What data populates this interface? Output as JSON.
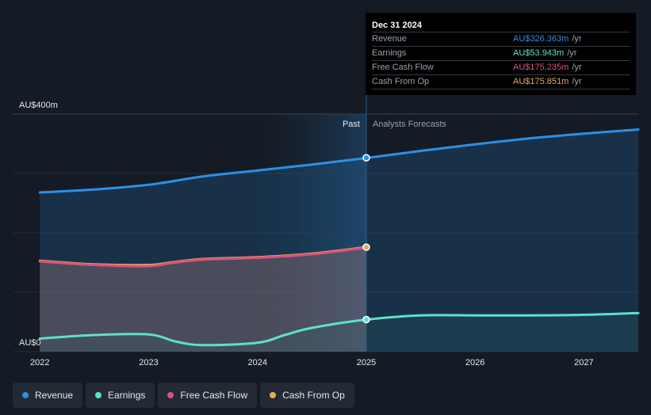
{
  "tooltip": {
    "date": "Dec 31 2024",
    "rows": [
      {
        "label": "Revenue",
        "value": "AU$326.363m",
        "unit": "/yr",
        "color": "#2d8fe6"
      },
      {
        "label": "Earnings",
        "value": "AU$53.943m",
        "unit": "/yr",
        "color": "#5ee0c9"
      },
      {
        "label": "Free Cash Flow",
        "value": "AU$175.235m",
        "unit": "/yr",
        "color": "#d9527f"
      },
      {
        "label": "Cash From Op",
        "value": "AU$175.851m",
        "unit": "/yr",
        "color": "#e8a95c"
      }
    ]
  },
  "legend": [
    {
      "label": "Revenue",
      "color": "#2d8fe6"
    },
    {
      "label": "Earnings",
      "color": "#5ee0c9"
    },
    {
      "label": "Free Cash Flow",
      "color": "#d9527f"
    },
    {
      "label": "Cash From Op",
      "color": "#e8a95c"
    }
  ],
  "chart_data": {
    "type": "area",
    "ylabel_top": "AU$400m",
    "ylabel_bottom": "AU$0",
    "ylim": [
      0,
      400
    ],
    "xlim": [
      2021.75,
      2027.5
    ],
    "x_ticks": [
      "2022",
      "2023",
      "2024",
      "2025",
      "2026",
      "2027"
    ],
    "x_tick_values": [
      2022,
      2023,
      2024,
      2025,
      2026,
      2027
    ],
    "past_label": "Past",
    "forecast_label": "Analysts Forecasts",
    "divider_x": 2025.0,
    "shade_start_x": 2024.0,
    "series": [
      {
        "name": "Revenue",
        "color": "#2d8fe6",
        "fill": true,
        "x": [
          2022.0,
          2022.5,
          2023.0,
          2023.5,
          2024.0,
          2024.5,
          2025.0,
          2025.5,
          2026.0,
          2026.5,
          2027.0,
          2027.5
        ],
        "values": [
          268,
          273,
          281,
          295,
          305,
          315,
          326,
          338,
          349,
          359,
          367,
          374
        ]
      },
      {
        "name": "Cash From Op",
        "color": "#e8a95c",
        "fill": true,
        "x": [
          2022.0,
          2022.5,
          2023.0,
          2023.2,
          2023.5,
          2024.0,
          2024.5,
          2025.0
        ],
        "values": [
          153,
          147,
          146,
          150,
          156,
          159,
          165,
          176
        ]
      },
      {
        "name": "Free Cash Flow",
        "color": "#d9527f",
        "fill": false,
        "x": [
          2022.0,
          2022.5,
          2023.0,
          2023.2,
          2023.5,
          2024.0,
          2024.5,
          2025.0
        ],
        "values": [
          152,
          146,
          144,
          149,
          155,
          158,
          164,
          175
        ]
      },
      {
        "name": "Earnings",
        "color": "#5ee0c9",
        "fill": true,
        "x": [
          2022.0,
          2022.5,
          2023.0,
          2023.25,
          2023.5,
          2024.0,
          2024.25,
          2024.5,
          2025.0,
          2025.5,
          2026.0,
          2026.5,
          2027.0,
          2027.5
        ],
        "values": [
          22,
          28,
          29,
          17,
          11,
          15,
          28,
          40,
          54,
          61,
          61,
          61,
          62,
          65
        ]
      }
    ],
    "highlight_x": 2025.0,
    "highlight_points": [
      {
        "series": "Revenue",
        "value": 326.363
      },
      {
        "series": "Cash From Op",
        "value": 175.851
      },
      {
        "series": "Earnings",
        "value": 53.943
      }
    ]
  }
}
